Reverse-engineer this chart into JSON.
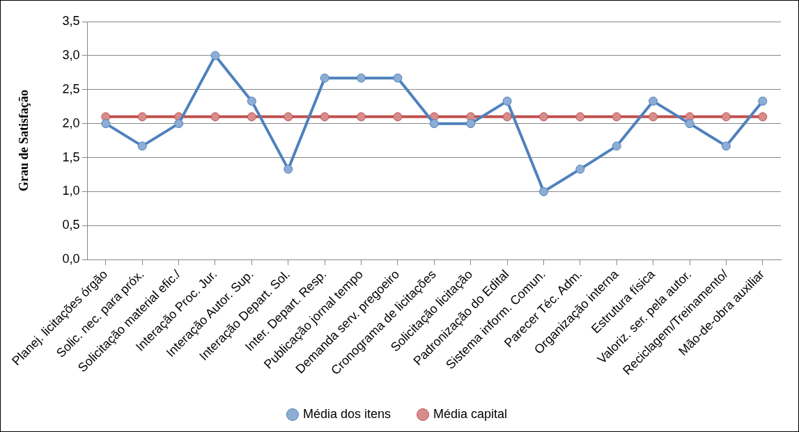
{
  "chart_data": {
    "type": "line",
    "ylabel": "Grau de Satisfação",
    "categories": [
      "Planej. licitações órgão",
      "Solic. nec. para próx.",
      "Solicitação material efic./",
      "Interação Proc. Jur.",
      "Interação Autor. Sup.",
      "Interação Depart. Sol.",
      "Inter. Depart. Resp.",
      "Publicação jornal tempo",
      "Demanda serv. pregoeiro",
      "Cronograma de licitações",
      "Solicitação licitação",
      "Padronização do Edital",
      "Sistema inform. Comun.",
      "Parecer Téc. Adm.",
      "Organização interna",
      "Estrutura física",
      "Valoriz. ser. pela autor.",
      "Reciclagem/Treinamento/",
      "Mão-de-obra auxiliar"
    ],
    "series": [
      {
        "name": "Média dos itens",
        "color": "#4f81bd",
        "values": [
          2.0,
          1.67,
          2.0,
          3.0,
          2.33,
          1.33,
          2.67,
          2.67,
          2.67,
          2.0,
          2.0,
          2.33,
          1.0,
          1.33,
          1.67,
          2.33,
          2.0,
          1.67,
          2.33
        ]
      },
      {
        "name": "Média capital",
        "color": "#c0504d",
        "values": [
          2.1,
          2.1,
          2.1,
          2.1,
          2.1,
          2.1,
          2.1,
          2.1,
          2.1,
          2.1,
          2.1,
          2.1,
          2.1,
          2.1,
          2.1,
          2.1,
          2.1,
          2.1,
          2.1
        ]
      }
    ],
    "ylim": [
      0,
      3.5
    ],
    "yticks": [
      {
        "value": 0,
        "label": "0,0"
      },
      {
        "value": 0.5,
        "label": "0,5"
      },
      {
        "value": 1,
        "label": "1,0"
      },
      {
        "value": 1.5,
        "label": "1,5"
      },
      {
        "value": 2,
        "label": "2,0"
      },
      {
        "value": 2.5,
        "label": "2,5"
      },
      {
        "value": 3,
        "label": "3,0"
      },
      {
        "value": 3.5,
        "label": "3,5"
      }
    ],
    "grid": "y",
    "legend": "bottom",
    "marker": "circle",
    "line_style": "solid"
  }
}
